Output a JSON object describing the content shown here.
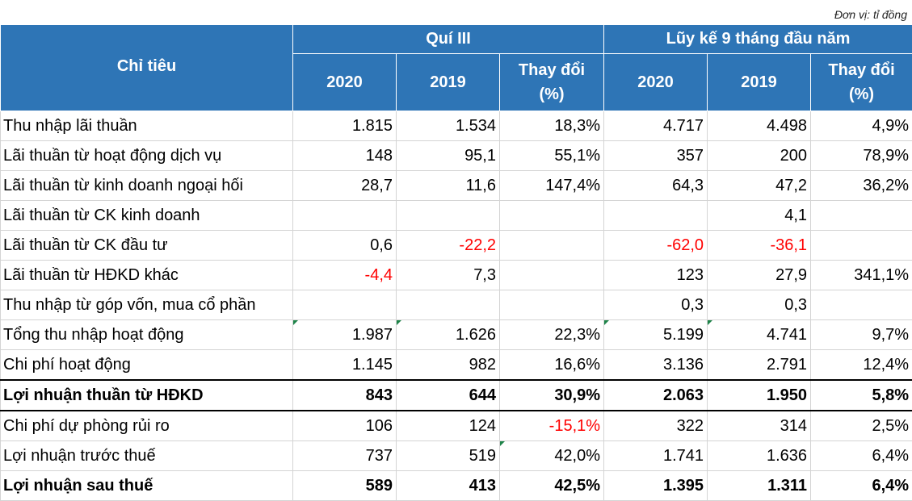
{
  "unit_note": "Đơn vị: tỉ đồng",
  "header": {
    "indicator": "Chỉ tiêu",
    "group_q3": "Quí III",
    "group_9m": "Lũy kế 9 tháng đầu năm",
    "year_2020": "2020",
    "year_2019": "2019",
    "change_line1": "Thay đổi",
    "change_line2": "(%)"
  },
  "rows": [
    {
      "label": "Thu nhập lãi thuần",
      "values": [
        "1.815",
        "1.534",
        "18,3%",
        "4.717",
        "4.498",
        "4,9%"
      ]
    },
    {
      "label": "Lãi thuần từ hoạt động dịch vụ",
      "values": [
        "148",
        "95,1",
        "55,1%",
        "357",
        "200",
        "78,9%"
      ]
    },
    {
      "label": "Lãi thuần từ kinh doanh ngoại hối",
      "values": [
        "28,7",
        "11,6",
        "147,4%",
        "64,3",
        "47,2",
        "36,2%"
      ]
    },
    {
      "label": "Lãi thuần từ CK kinh doanh",
      "values": [
        "",
        "",
        "",
        "",
        "4,1",
        ""
      ]
    },
    {
      "label": "Lãi thuần từ CK đầu tư",
      "values": [
        "0,6",
        "-22,2",
        "",
        "-62,0",
        "-36,1",
        ""
      ]
    },
    {
      "label": "Lãi thuần từ HĐKD khác",
      "values": [
        "-4,4",
        "7,3",
        "",
        "123",
        "27,9",
        "341,1%"
      ]
    },
    {
      "label": "Thu nhập từ góp vốn, mua cổ phần",
      "values": [
        "",
        "",
        "",
        "0,3",
        "0,3",
        ""
      ]
    },
    {
      "label": "Tổng thu nhập hoạt động",
      "values": [
        "1.987",
        "1.626",
        "22,3%",
        "5.199",
        "4.741",
        "9,7%"
      ]
    },
    {
      "label": "Chi phí hoạt động",
      "values": [
        "1.145",
        "982",
        "16,6%",
        "3.136",
        "2.791",
        "12,4%"
      ]
    },
    {
      "label": "Lợi nhuận thuần từ HĐKD",
      "values": [
        "843",
        "644",
        "30,9%",
        "2.063",
        "1.950",
        "5,8%"
      ]
    },
    {
      "label": "Chi phí dự phòng rủi ro",
      "values": [
        "106",
        "124",
        "-15,1%",
        "322",
        "314",
        "2,5%"
      ]
    },
    {
      "label": "Lợi nhuận trước thuế",
      "values": [
        "737",
        "519",
        "42,0%",
        "1.741",
        "1.636",
        "6,4%"
      ]
    },
    {
      "label": "Lợi nhuận sau thuế",
      "values": [
        "589",
        "413",
        "42,5%",
        "1.395",
        "1.311",
        "6,4%"
      ]
    }
  ],
  "colors": {
    "header_bg": "#2e75b6",
    "header_text": "#ffffff",
    "negative": "#ff0000",
    "cell_marker": "#1e8449"
  }
}
